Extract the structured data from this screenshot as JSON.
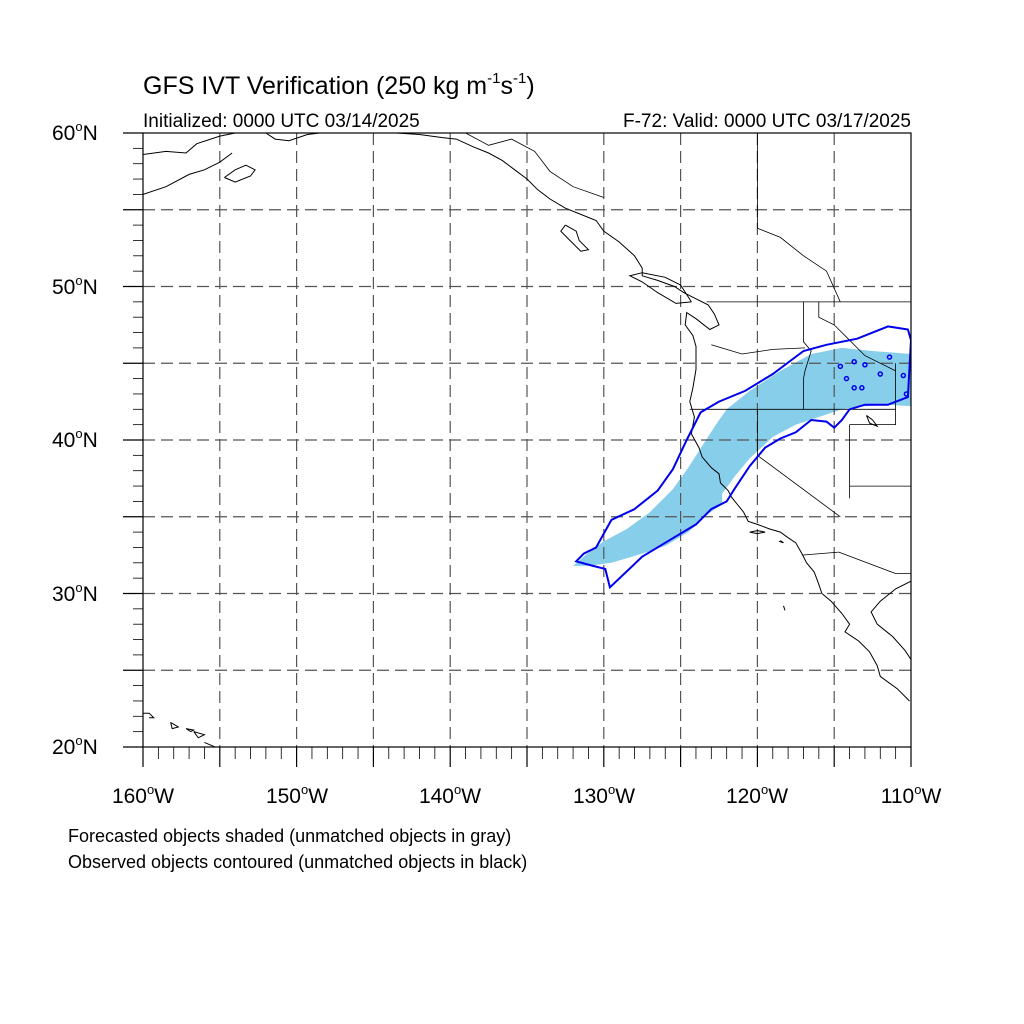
{
  "title": {
    "prefix": "GFS IVT Verification (250 kg m",
    "sup1": "-1",
    "mid": "s",
    "sup2": "-1",
    "suffix": ")"
  },
  "initialized": "Initialized: 0000 UTC 03/14/2025",
  "valid": "F-72: Valid: 0000 UTC 03/17/2025",
  "degree_symbol": "o",
  "lat_labels": [
    {
      "num": "60",
      "hem": "N"
    },
    {
      "num": "50",
      "hem": "N"
    },
    {
      "num": "40",
      "hem": "N"
    },
    {
      "num": "30",
      "hem": "N"
    },
    {
      "num": "20",
      "hem": "N"
    }
  ],
  "lon_labels": [
    {
      "num": "160",
      "hem": "W"
    },
    {
      "num": "150",
      "hem": "W"
    },
    {
      "num": "140",
      "hem": "W"
    },
    {
      "num": "130",
      "hem": "W"
    },
    {
      "num": "120",
      "hem": "W"
    },
    {
      "num": "110",
      "hem": "W"
    }
  ],
  "map": {
    "extent": {
      "lon": [
        -160,
        -110
      ],
      "lat": [
        20,
        60
      ]
    },
    "gridline_spacing_deg": 5,
    "forecast_fill_color": "#87CEEB",
    "observed_contour_color": "#0000EE",
    "coastline_color": "#000000",
    "forecast_object": [
      [
        -132.0,
        31.8
      ],
      [
        -131.2,
        32.5
      ],
      [
        -130.0,
        33.4
      ],
      [
        -128.5,
        34.2
      ],
      [
        -127.0,
        35.3
      ],
      [
        -125.5,
        36.8
      ],
      [
        -124.5,
        38.2
      ],
      [
        -123.6,
        39.6
      ],
      [
        -122.7,
        41.0
      ],
      [
        -122.0,
        42.0
      ],
      [
        -120.5,
        43.2
      ],
      [
        -118.5,
        44.5
      ],
      [
        -116.5,
        45.6
      ],
      [
        -114.5,
        46.0
      ],
      [
        -112.5,
        45.8
      ],
      [
        -110.0,
        45.6
      ],
      [
        -110.0,
        42.2
      ],
      [
        -111.5,
        42.3
      ],
      [
        -113.0,
        42.2
      ],
      [
        -114.5,
        42.0
      ],
      [
        -116.0,
        41.5
      ],
      [
        -117.5,
        41.0
      ],
      [
        -119.0,
        40.2
      ],
      [
        -120.5,
        38.8
      ],
      [
        -121.5,
        37.6
      ],
      [
        -122.3,
        36.5
      ],
      [
        -122.3,
        35.8
      ],
      [
        -123.2,
        35.2
      ],
      [
        -124.5,
        34.0
      ],
      [
        -126.0,
        33.1
      ],
      [
        -127.5,
        32.6
      ],
      [
        -129.5,
        32.0
      ],
      [
        -131.0,
        31.8
      ]
    ],
    "observed_object": [
      [
        -130.5,
        33.0
      ],
      [
        -129.5,
        34.8
      ],
      [
        -128.0,
        35.5
      ],
      [
        -126.5,
        36.7
      ],
      [
        -125.5,
        38.1
      ],
      [
        -124.6,
        40.0
      ],
      [
        -123.7,
        41.8
      ],
      [
        -122.5,
        42.5
      ],
      [
        -120.8,
        43.2
      ],
      [
        -119.0,
        44.3
      ],
      [
        -117.0,
        45.8
      ],
      [
        -115.5,
        46.2
      ],
      [
        -113.5,
        46.6
      ],
      [
        -111.5,
        47.4
      ],
      [
        -110.2,
        47.2
      ],
      [
        -110.0,
        46.5
      ],
      [
        -110.2,
        42.8
      ],
      [
        -111.5,
        42.3
      ],
      [
        -113.0,
        42.3
      ],
      [
        -114.0,
        42.0
      ],
      [
        -114.5,
        41.3
      ],
      [
        -115.0,
        40.8
      ],
      [
        -115.5,
        41.2
      ],
      [
        -116.5,
        41.3
      ],
      [
        -117.5,
        40.5
      ],
      [
        -118.5,
        40.1
      ],
      [
        -119.5,
        39.5
      ],
      [
        -120.5,
        38.3
      ],
      [
        -121.5,
        36.8
      ],
      [
        -122.0,
        36.0
      ],
      [
        -123.0,
        35.5
      ],
      [
        -124.0,
        34.5
      ],
      [
        -125.5,
        33.6
      ],
      [
        -127.5,
        32.4
      ],
      [
        -129.6,
        30.4
      ],
      [
        -129.9,
        31.6
      ],
      [
        -130.7,
        31.8
      ],
      [
        -131.8,
        32.1
      ],
      [
        -131.3,
        32.6
      ]
    ],
    "observed_small_objects": [
      [
        -113.7,
        45.1
      ],
      [
        -113.0,
        44.9
      ],
      [
        -112.0,
        44.3
      ],
      [
        -111.4,
        45.4
      ],
      [
        -110.5,
        44.2
      ],
      [
        -114.2,
        44.0
      ],
      [
        -113.7,
        43.4
      ],
      [
        -113.2,
        43.4
      ],
      [
        -110.3,
        43.0
      ],
      [
        -114.6,
        44.8
      ]
    ],
    "coastlines": [
      [
        [
          -160.0,
          58.6
        ],
        [
          -158.5,
          58.8
        ],
        [
          -157.2,
          58.7
        ],
        [
          -156.5,
          59.3
        ],
        [
          -155.0,
          59.8
        ],
        [
          -154.0,
          60.0
        ]
      ],
      [
        [
          -160.0,
          56.0
        ],
        [
          -158.5,
          56.5
        ],
        [
          -157.0,
          57.3
        ],
        [
          -156.0,
          57.6
        ],
        [
          -155.0,
          58.1
        ],
        [
          -154.2,
          58.7
        ]
      ],
      [
        [
          -154.7,
          57.1
        ],
        [
          -154.0,
          57.6
        ],
        [
          -153.3,
          57.9
        ],
        [
          -152.7,
          57.6
        ],
        [
          -153.0,
          57.2
        ],
        [
          -154.0,
          56.8
        ],
        [
          -154.7,
          57.1
        ]
      ],
      [
        [
          -152.0,
          60.0
        ],
        [
          -151.4,
          59.6
        ],
        [
          -150.5,
          59.5
        ],
        [
          -149.3,
          59.9
        ],
        [
          -148.5,
          60.0
        ]
      ],
      [
        [
          -145.0,
          60.0
        ],
        [
          -143.5,
          60.0
        ],
        [
          -142.0,
          59.9
        ],
        [
          -140.5,
          59.7
        ],
        [
          -139.6,
          59.6
        ],
        [
          -138.5,
          59.1
        ],
        [
          -137.5,
          58.7
        ],
        [
          -136.6,
          58.2
        ],
        [
          -135.8,
          57.6
        ],
        [
          -135.0,
          57.0
        ],
        [
          -134.3,
          56.3
        ],
        [
          -133.5,
          55.7
        ],
        [
          -132.5,
          55.1
        ],
        [
          -131.5,
          54.7
        ],
        [
          -130.5,
          54.3
        ],
        [
          -130.0,
          53.6
        ],
        [
          -129.0,
          52.9
        ],
        [
          -128.0,
          52.0
        ],
        [
          -127.5,
          51.2
        ],
        [
          -127.5,
          50.7
        ],
        [
          -126.5,
          50.4
        ],
        [
          -125.4,
          50.0
        ],
        [
          -124.8,
          49.6
        ],
        [
          -124.0,
          49.2
        ],
        [
          -123.2,
          48.8
        ],
        [
          -122.8,
          48.2
        ],
        [
          -122.5,
          47.5
        ],
        [
          -123.1,
          47.2
        ],
        [
          -124.0,
          47.9
        ],
        [
          -124.6,
          48.3
        ],
        [
          -124.7,
          47.5
        ],
        [
          -124.2,
          46.8
        ],
        [
          -124.0,
          46.1
        ],
        [
          -124.0,
          44.6
        ],
        [
          -124.2,
          43.4
        ],
        [
          -124.4,
          42.5
        ],
        [
          -124.1,
          41.5
        ],
        [
          -124.3,
          40.4
        ],
        [
          -123.8,
          39.5
        ],
        [
          -123.6,
          38.9
        ],
        [
          -123.0,
          38.2
        ],
        [
          -122.5,
          37.8
        ],
        [
          -122.4,
          37.2
        ],
        [
          -121.9,
          36.7
        ],
        [
          -121.7,
          36.3
        ],
        [
          -121.3,
          35.8
        ],
        [
          -120.9,
          35.3
        ],
        [
          -120.6,
          34.7
        ],
        [
          -120.0,
          34.5
        ],
        [
          -119.2,
          34.2
        ],
        [
          -118.5,
          34.0
        ],
        [
          -118.1,
          33.7
        ],
        [
          -117.5,
          33.3
        ],
        [
          -117.1,
          32.6
        ],
        [
          -116.8,
          32.0
        ],
        [
          -116.3,
          31.4
        ],
        [
          -116.0,
          30.6
        ],
        [
          -115.8,
          30.0
        ],
        [
          -115.2,
          29.5
        ],
        [
          -114.5,
          28.7
        ],
        [
          -114.0,
          28.0
        ],
        [
          -114.3,
          27.5
        ],
        [
          -113.4,
          26.9
        ],
        [
          -112.7,
          26.2
        ],
        [
          -112.2,
          25.3
        ],
        [
          -112.0,
          24.6
        ],
        [
          -110.9,
          23.8
        ],
        [
          -110.1,
          23.0
        ]
      ],
      [
        [
          -124.3,
          49.0
        ],
        [
          -125.3,
          48.9
        ],
        [
          -126.5,
          49.6
        ],
        [
          -127.5,
          50.3
        ],
        [
          -128.3,
          50.7
        ],
        [
          -127.5,
          50.9
        ],
        [
          -126.0,
          50.6
        ],
        [
          -125.0,
          50.1
        ],
        [
          -124.3,
          49.0
        ]
      ],
      [
        [
          -132.5,
          54.0
        ],
        [
          -131.8,
          53.6
        ],
        [
          -131.6,
          53.0
        ],
        [
          -131.0,
          52.4
        ],
        [
          -131.5,
          52.3
        ],
        [
          -132.2,
          53.0
        ],
        [
          -132.8,
          53.6
        ],
        [
          -132.5,
          54.0
        ]
      ],
      [
        [
          -110.0,
          30.8
        ],
        [
          -111.0,
          30.3
        ],
        [
          -112.0,
          29.5
        ],
        [
          -112.6,
          28.8
        ],
        [
          -112.2,
          28.0
        ],
        [
          -111.2,
          27.2
        ],
        [
          -110.4,
          26.3
        ],
        [
          -110.0,
          25.7
        ]
      ],
      [
        [
          -120.5,
          34.0
        ],
        [
          -120.0,
          33.9
        ],
        [
          -119.5,
          34.0
        ],
        [
          -120.0,
          34.1
        ],
        [
          -120.5,
          34.0
        ]
      ],
      [
        [
          -118.6,
          33.4
        ],
        [
          -118.3,
          33.3
        ],
        [
          -118.5,
          33.45
        ]
      ],
      [
        [
          -118.3,
          29.2
        ],
        [
          -118.2,
          28.9
        ]
      ],
      [
        [
          -160.0,
          22.2
        ],
        [
          -159.6,
          22.2
        ],
        [
          -159.3,
          21.9
        ],
        [
          -159.6,
          21.9
        ]
      ],
      [
        [
          -158.2,
          21.6
        ],
        [
          -157.7,
          21.3
        ],
        [
          -158.1,
          21.2
        ],
        [
          -158.2,
          21.6
        ]
      ],
      [
        [
          -157.2,
          21.2
        ],
        [
          -156.7,
          21.1
        ],
        [
          -156.9,
          21.0
        ],
        [
          -157.2,
          21.2
        ]
      ],
      [
        [
          -156.7,
          21.0
        ],
        [
          -156.0,
          20.8
        ],
        [
          -156.4,
          20.6
        ],
        [
          -156.7,
          21.0
        ]
      ],
      [
        [
          -156.0,
          20.3
        ],
        [
          -155.3,
          20.0
        ],
        [
          -154.8,
          19.6
        ]
      ],
      [
        [
          -112.9,
          41.6
        ],
        [
          -112.5,
          41.3
        ],
        [
          -112.2,
          40.9
        ],
        [
          -112.7,
          41.1
        ],
        [
          -112.9,
          41.6
        ]
      ]
    ],
    "boundaries": [
      [
        [
          -110.0,
          49.0
        ],
        [
          -123.3,
          49.0
        ]
      ],
      [
        [
          -123.0,
          46.2
        ],
        [
          -121.0,
          45.6
        ],
        [
          -119.0,
          45.9
        ],
        [
          -116.9,
          46.0
        ]
      ],
      [
        [
          -124.2,
          42.0
        ],
        [
          -111.0,
          42.0
        ]
      ],
      [
        [
          -120.0,
          42.0
        ],
        [
          -120.0,
          39.0
        ],
        [
          -114.6,
          35.0
        ]
      ],
      [
        [
          -117.0,
          49.0
        ],
        [
          -117.0,
          46.4
        ],
        [
          -116.5,
          45.8
        ],
        [
          -116.9,
          44.5
        ],
        [
          -117.0,
          44.0
        ],
        [
          -117.0,
          42.0
        ]
      ],
      [
        [
          -114.0,
          41.0
        ],
        [
          -114.0,
          36.2
        ]
      ],
      [
        [
          -111.0,
          45.0
        ],
        [
          -111.0,
          41.0
        ],
        [
          -114.0,
          41.0
        ]
      ],
      [
        [
          -114.0,
          37.0
        ],
        [
          -110.0,
          37.0
        ]
      ],
      [
        [
          -114.7,
          32.7
        ],
        [
          -117.1,
          32.5
        ]
      ],
      [
        [
          -114.7,
          32.7
        ],
        [
          -111.0,
          31.3
        ],
        [
          -110.0,
          31.3
        ]
      ],
      [
        [
          -116.0,
          49.0
        ],
        [
          -116.0,
          48.0
        ],
        [
          -115.0,
          47.5
        ],
        [
          -114.0,
          46.5
        ],
        [
          -113.0,
          45.5
        ],
        [
          -111.0,
          44.5
        ]
      ],
      [
        [
          -120.0,
          60.0
        ],
        [
          -120.0,
          53.8
        ]
      ],
      [
        [
          -120.0,
          53.8
        ],
        [
          -118.5,
          53.2
        ],
        [
          -117.0,
          52.0
        ],
        [
          -115.5,
          51.0
        ],
        [
          -114.6,
          49.0
        ]
      ],
      [
        [
          -139.0,
          60.0
        ],
        [
          -137.5,
          59.2
        ],
        [
          -136.0,
          59.6
        ],
        [
          -134.5,
          58.8
        ],
        [
          -133.5,
          57.5
        ],
        [
          -132.0,
          56.5
        ],
        [
          -130.0,
          55.8
        ]
      ],
      [
        [
          -124.2,
          42.0
        ],
        [
          -124.4,
          42.0
        ]
      ]
    ]
  },
  "notes": {
    "forecast": "Forecasted objects shaded (unmatched objects in gray)",
    "observed": "Observed objects contoured (unmatched objects in black)"
  }
}
